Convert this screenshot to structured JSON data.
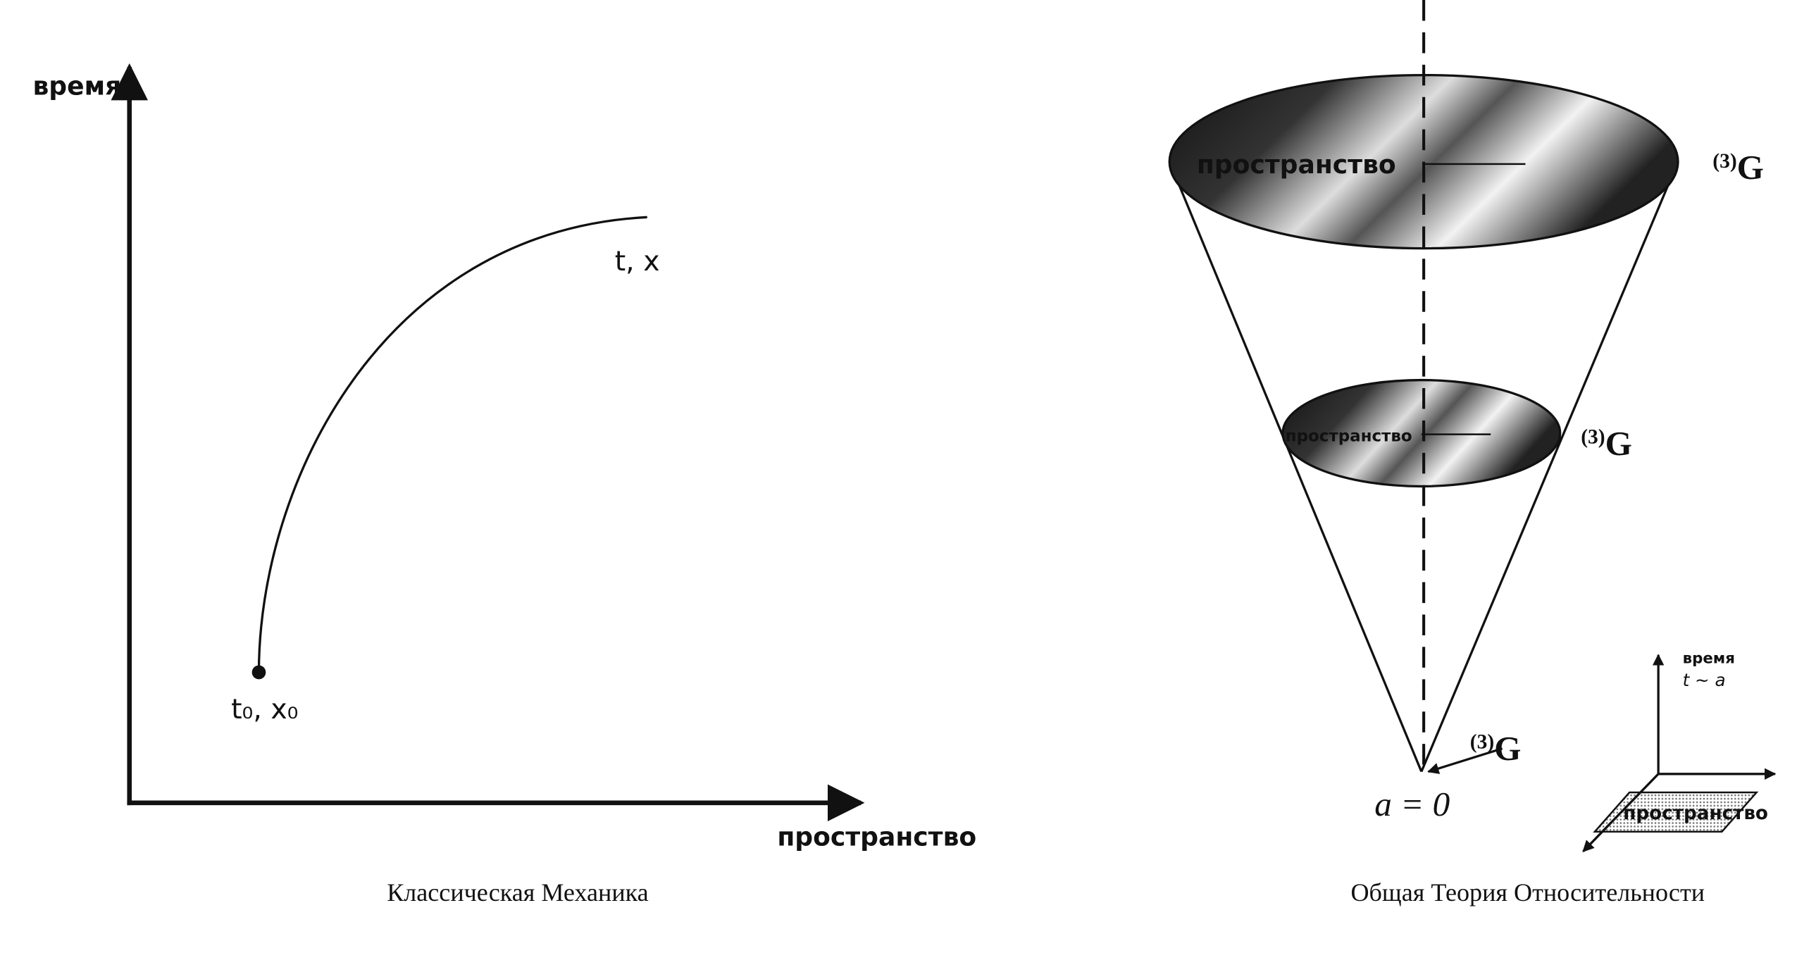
{
  "classical": {
    "time_label": "время",
    "end_label": "t, x",
    "start_label": "t₀, x₀",
    "space_label": "пространство",
    "caption": "Классическая Механика"
  },
  "relativity": {
    "big_slice_label": "пространство",
    "small_slice_label": "пространство",
    "g_labels": [
      {
        "sup": "(3)",
        "main": "G"
      },
      {
        "sup": "(3)",
        "main": "G"
      },
      {
        "sup": "(3)",
        "main": "G"
      }
    ],
    "origin_label": "a = 0",
    "inset_time_label": "время",
    "inset_relation": "t ~ a",
    "inset_space_label": "пространство",
    "caption": "Общая Теория Относительности"
  }
}
